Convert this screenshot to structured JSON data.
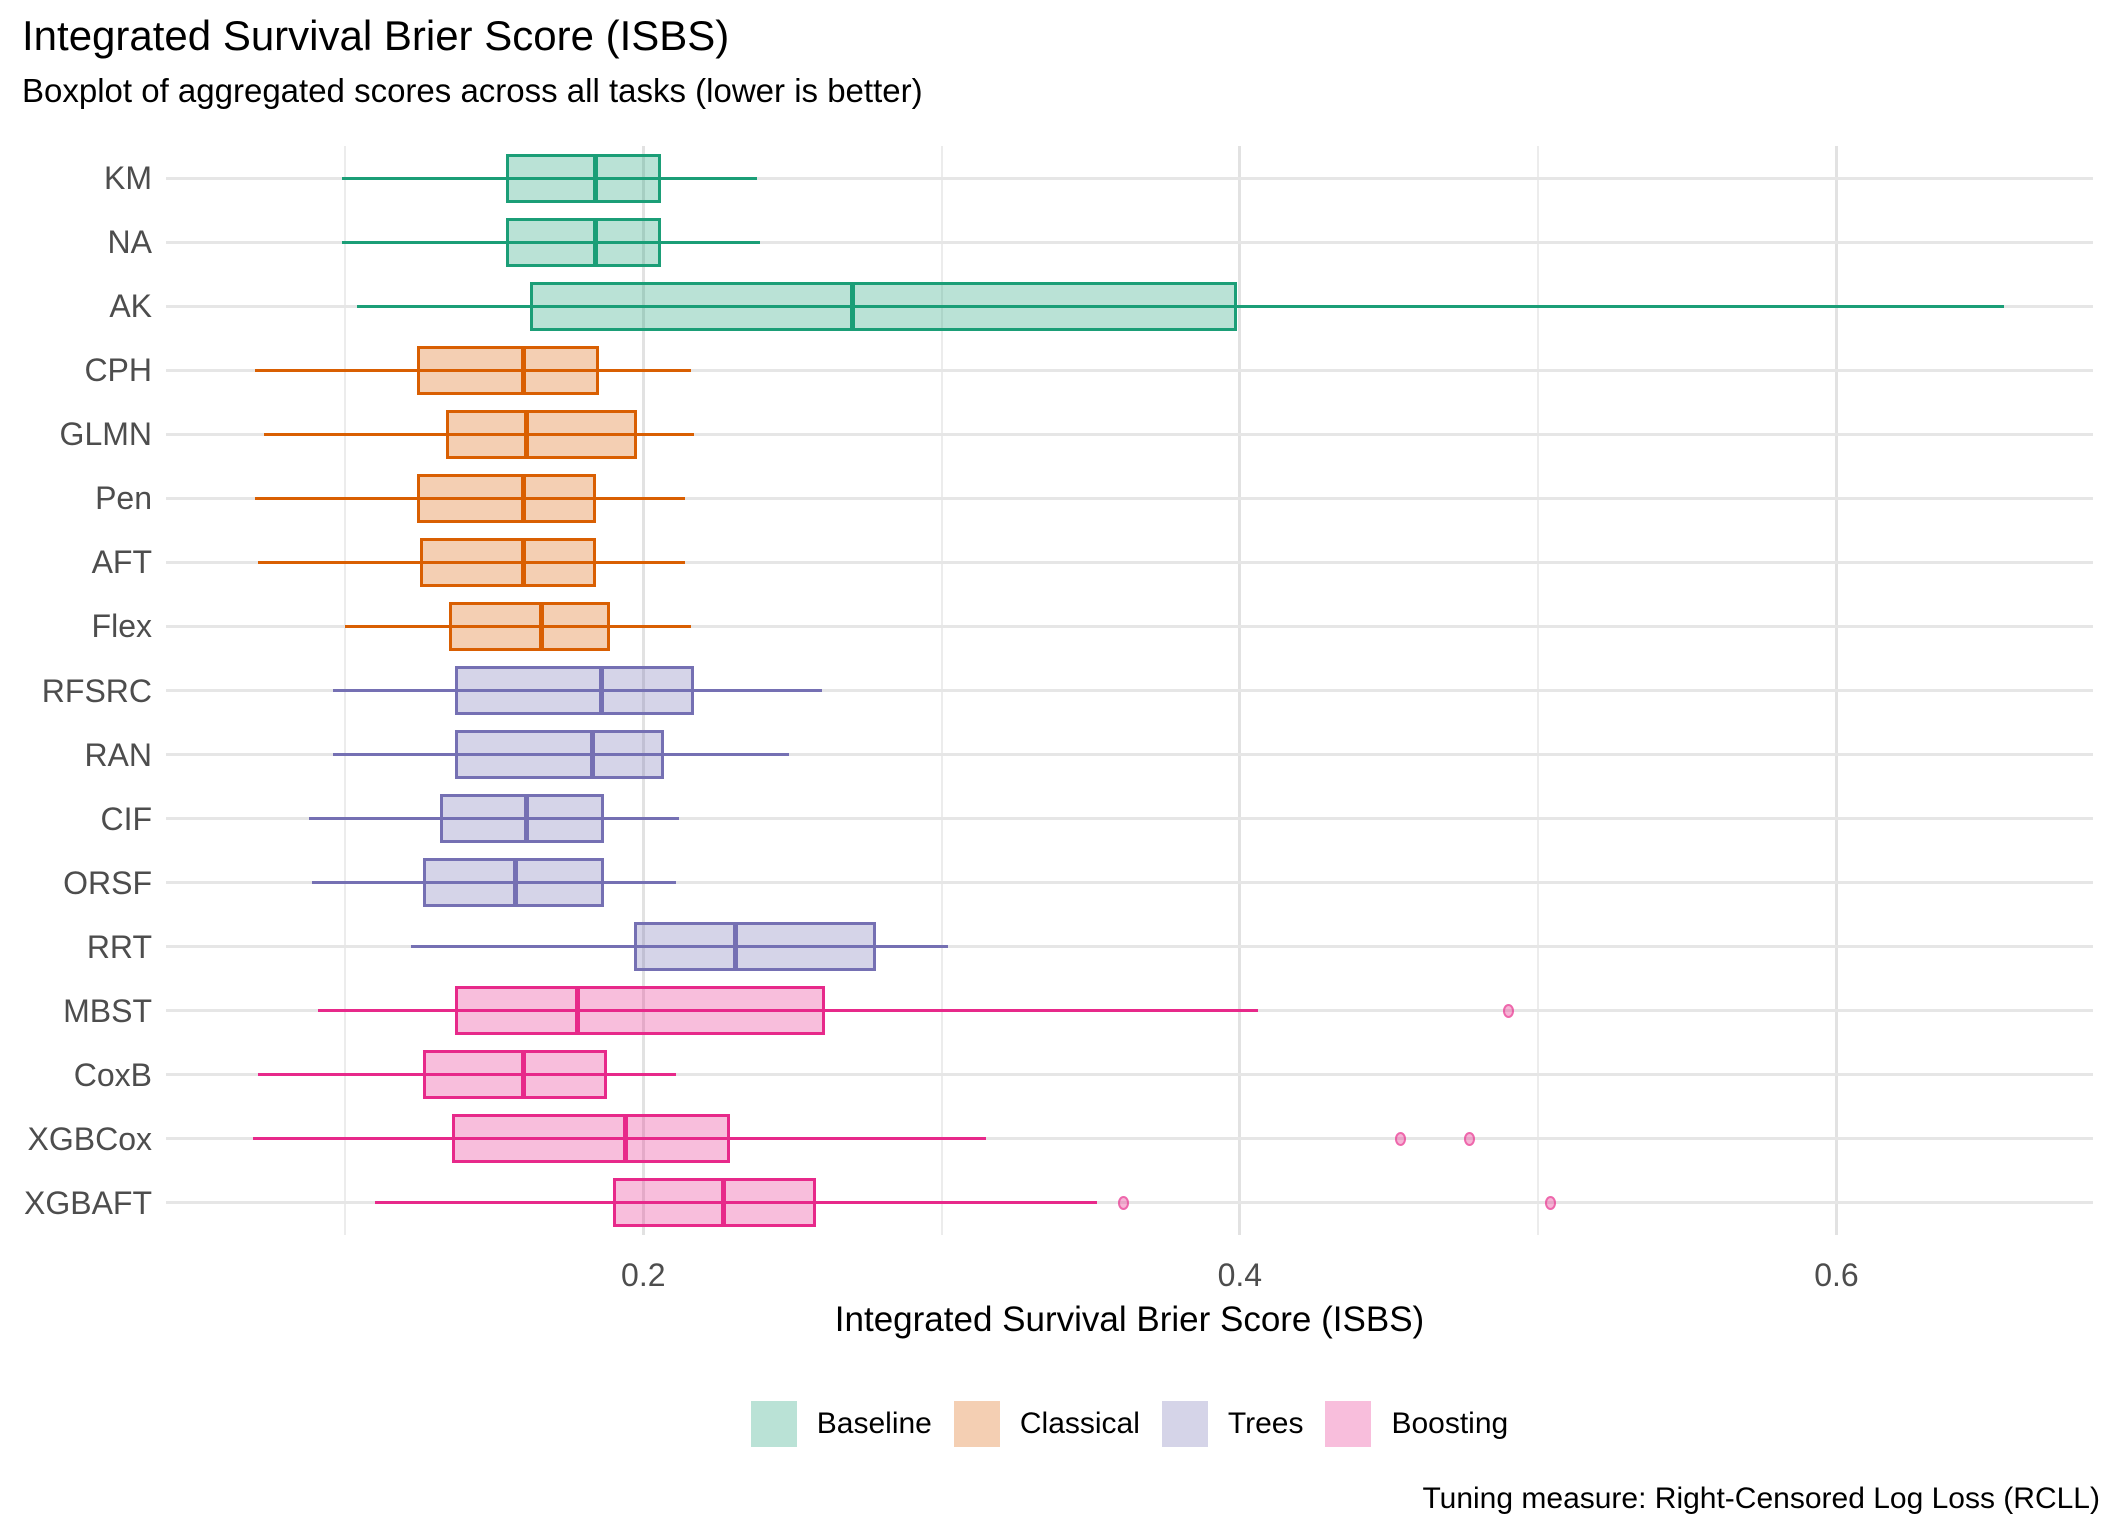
{
  "chart_data": {
    "type": "boxplot",
    "orientation": "horizontal",
    "title": "Integrated Survival Brier Score (ISBS)",
    "subtitle": "Boxplot of aggregated scores across all tasks (lower is better)",
    "xlabel": "Integrated Survival Brier Score (ISBS)",
    "caption": "Tuning measure: Right-Censored Log Loss (RCLL)",
    "xlim": [
      0.04,
      0.686
    ],
    "grid": true,
    "x_ticks_major": [
      {
        "value": 0.2,
        "label": "0.2"
      },
      {
        "value": 0.4,
        "label": "0.4"
      },
      {
        "value": 0.6,
        "label": "0.6"
      }
    ],
    "x_ticks_minor": [
      0.1,
      0.3,
      0.5
    ],
    "legend": {
      "position": "bottom",
      "entries": [
        "Baseline",
        "Classical",
        "Trees",
        "Boosting"
      ]
    },
    "groups": {
      "Baseline": {
        "stroke": "#1B9E77",
        "fill": "rgba(27,158,119,0.30)"
      },
      "Classical": {
        "stroke": "#D95F02",
        "fill": "rgba(217,95,2,0.30)"
      },
      "Trees": {
        "stroke": "#7570B3",
        "fill": "rgba(117,112,179,0.30)"
      },
      "Boosting": {
        "stroke": "#E7298A",
        "fill": "rgba(231,41,138,0.30)"
      }
    },
    "outlier_style": {
      "fill": "rgba(231,41,138,0.35)",
      "stroke": "rgba(231,41,138,0.55)"
    },
    "models": [
      {
        "name": "KM",
        "group": "Baseline",
        "whisker_low": 0.099,
        "q1": 0.154,
        "median": 0.184,
        "q3": 0.206,
        "whisker_high": 0.238,
        "outliers": []
      },
      {
        "name": "NA",
        "group": "Baseline",
        "whisker_low": 0.099,
        "q1": 0.154,
        "median": 0.184,
        "q3": 0.206,
        "whisker_high": 0.239,
        "outliers": []
      },
      {
        "name": "AK",
        "group": "Baseline",
        "whisker_low": 0.104,
        "q1": 0.162,
        "median": 0.27,
        "q3": 0.399,
        "whisker_high": 0.656,
        "outliers": []
      },
      {
        "name": "CPH",
        "group": "Classical",
        "whisker_low": 0.07,
        "q1": 0.124,
        "median": 0.16,
        "q3": 0.185,
        "whisker_high": 0.216,
        "outliers": []
      },
      {
        "name": "GLMN",
        "group": "Classical",
        "whisker_low": 0.073,
        "q1": 0.134,
        "median": 0.161,
        "q3": 0.198,
        "whisker_high": 0.217,
        "outliers": []
      },
      {
        "name": "Pen",
        "group": "Classical",
        "whisker_low": 0.07,
        "q1": 0.124,
        "median": 0.16,
        "q3": 0.184,
        "whisker_high": 0.214,
        "outliers": []
      },
      {
        "name": "AFT",
        "group": "Classical",
        "whisker_low": 0.071,
        "q1": 0.125,
        "median": 0.16,
        "q3": 0.184,
        "whisker_high": 0.214,
        "outliers": []
      },
      {
        "name": "Flex",
        "group": "Classical",
        "whisker_low": 0.1,
        "q1": 0.135,
        "median": 0.166,
        "q3": 0.189,
        "whisker_high": 0.216,
        "outliers": []
      },
      {
        "name": "RFSRC",
        "group": "Trees",
        "whisker_low": 0.096,
        "q1": 0.137,
        "median": 0.186,
        "q3": 0.217,
        "whisker_high": 0.26,
        "outliers": []
      },
      {
        "name": "RAN",
        "group": "Trees",
        "whisker_low": 0.096,
        "q1": 0.137,
        "median": 0.183,
        "q3": 0.207,
        "whisker_high": 0.249,
        "outliers": []
      },
      {
        "name": "CIF",
        "group": "Trees",
        "whisker_low": 0.088,
        "q1": 0.132,
        "median": 0.161,
        "q3": 0.187,
        "whisker_high": 0.212,
        "outliers": []
      },
      {
        "name": "ORSF",
        "group": "Trees",
        "whisker_low": 0.089,
        "q1": 0.126,
        "median": 0.157,
        "q3": 0.187,
        "whisker_high": 0.211,
        "outliers": []
      },
      {
        "name": "RRT",
        "group": "Trees",
        "whisker_low": 0.122,
        "q1": 0.197,
        "median": 0.231,
        "q3": 0.278,
        "whisker_high": 0.302,
        "outliers": []
      },
      {
        "name": "MBST",
        "group": "Boosting",
        "whisker_low": 0.091,
        "q1": 0.137,
        "median": 0.178,
        "q3": 0.261,
        "whisker_high": 0.406,
        "outliers": [
          0.49
        ]
      },
      {
        "name": "CoxB",
        "group": "Boosting",
        "whisker_low": 0.071,
        "q1": 0.126,
        "median": 0.16,
        "q3": 0.188,
        "whisker_high": 0.211,
        "outliers": []
      },
      {
        "name": "XGBCox",
        "group": "Boosting",
        "whisker_low": 0.069,
        "q1": 0.136,
        "median": 0.194,
        "q3": 0.229,
        "whisker_high": 0.315,
        "outliers": [
          0.454,
          0.477
        ]
      },
      {
        "name": "XGBAFT",
        "group": "Boosting",
        "whisker_low": 0.11,
        "q1": 0.19,
        "median": 0.227,
        "q3": 0.258,
        "whisker_high": 0.352,
        "outliers": [
          0.361,
          0.504
        ]
      }
    ]
  }
}
